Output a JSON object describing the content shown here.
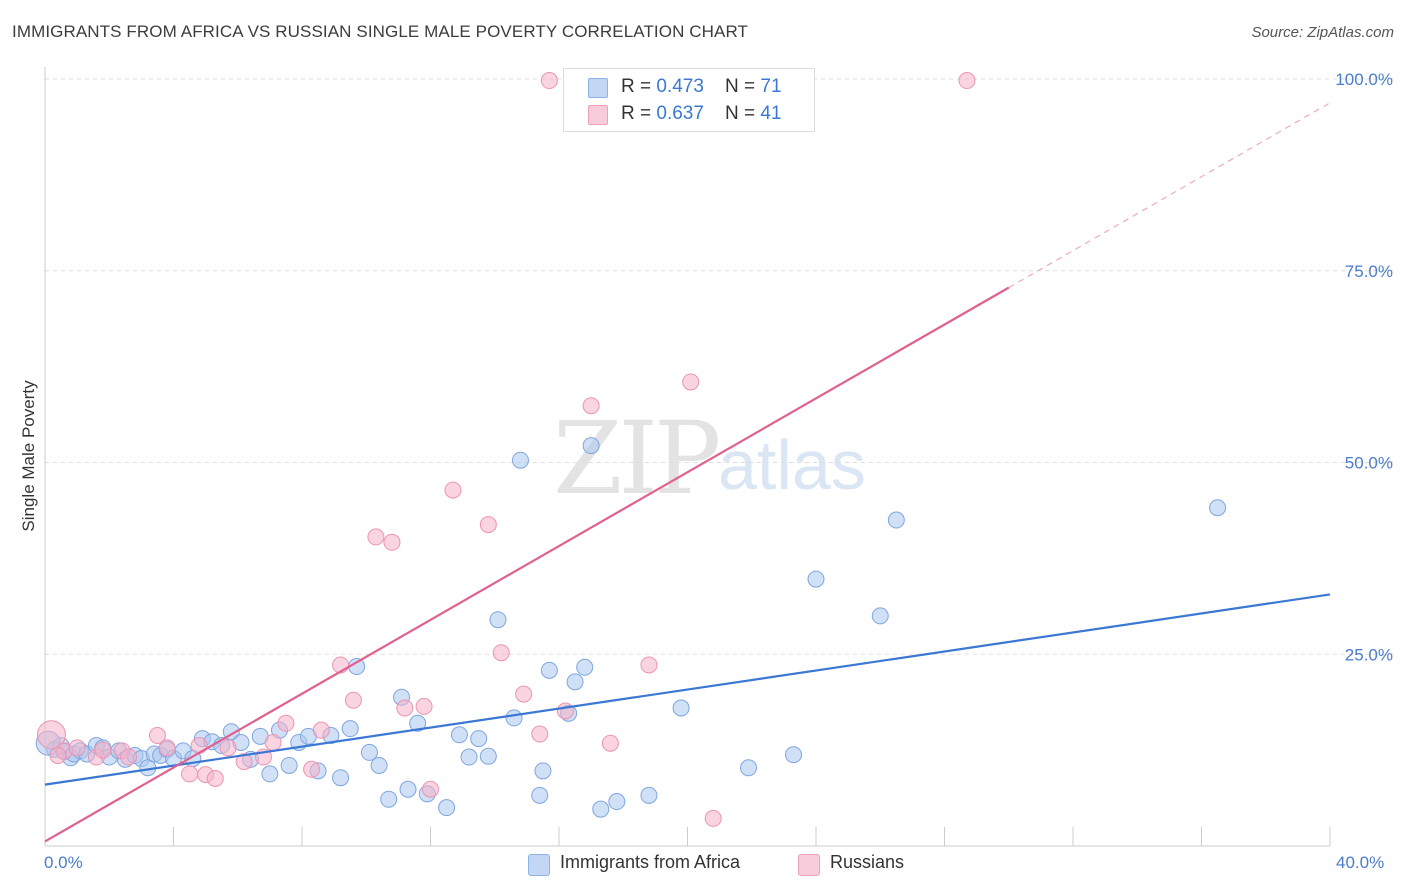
{
  "title": "IMMIGRANTS FROM AFRICA VS RUSSIAN SINGLE MALE POVERTY CORRELATION CHART",
  "source": "Source: ZipAtlas.com",
  "watermark": {
    "zip": "ZIP",
    "atlas": "atlas"
  },
  "colors": {
    "blue": "#3b78d4",
    "blue_fill": "#a9c6ee",
    "pink": "#e0608f",
    "pink_fill": "#f5b3c9",
    "tick": "#4a7cc9",
    "grid": "#dddddd"
  },
  "legend_top": {
    "rows": [
      {
        "r_label": "R = ",
        "r_value": "0.473",
        "n_label": "N = ",
        "n_value": "71"
      },
      {
        "r_label": "R = ",
        "r_value": "0.637",
        "n_label": "N = ",
        "n_value": "41"
      }
    ]
  },
  "legend_bottom": {
    "blue": "Immigrants from Africa",
    "pink": "Russians"
  },
  "x_ticks": {
    "left": "0.0%",
    "right": "40.0%"
  },
  "chart_data": {
    "type": "scatter",
    "title": "IMMIGRANTS FROM AFRICA VS RUSSIAN SINGLE MALE POVERTY CORRELATION CHART",
    "xlabel": "",
    "ylabel": "Single Male Poverty",
    "xlim": [
      0,
      40
    ],
    "ylim": [
      0,
      100
    ],
    "y_ticks": [
      {
        "value": 25,
        "label": "25.0%"
      },
      {
        "value": 50,
        "label": "50.0%"
      },
      {
        "value": 75,
        "label": "75.0%"
      },
      {
        "value": 100,
        "label": "100.0%"
      }
    ],
    "grid": true,
    "legend_position": "top-center",
    "series": [
      {
        "name": "Immigrants from Africa",
        "color": "#3b78d4",
        "trend": {
          "x": [
            0,
            40
          ],
          "y": [
            8.0,
            32.8
          ]
        },
        "points": [
          [
            0.3,
            12.6
          ],
          [
            0.5,
            13.1
          ],
          [
            0.6,
            12.3
          ],
          [
            0.8,
            11.5
          ],
          [
            0.9,
            12.0
          ],
          [
            1.1,
            12.4
          ],
          [
            1.3,
            12.0
          ],
          [
            1.6,
            13.1
          ],
          [
            1.8,
            12.8
          ],
          [
            2.0,
            11.6
          ],
          [
            2.3,
            12.4
          ],
          [
            2.5,
            11.3
          ],
          [
            2.8,
            11.8
          ],
          [
            3.0,
            11.4
          ],
          [
            3.2,
            10.2
          ],
          [
            3.4,
            12.0
          ],
          [
            3.6,
            11.8
          ],
          [
            3.8,
            12.6
          ],
          [
            4.0,
            11.4
          ],
          [
            4.3,
            12.4
          ],
          [
            4.6,
            11.4
          ],
          [
            4.9,
            14.0
          ],
          [
            5.2,
            13.6
          ],
          [
            5.5,
            13.1
          ],
          [
            5.8,
            14.9
          ],
          [
            6.1,
            13.5
          ],
          [
            6.4,
            11.3
          ],
          [
            6.7,
            14.3
          ],
          [
            7.0,
            9.4
          ],
          [
            7.3,
            15.1
          ],
          [
            7.6,
            10.5
          ],
          [
            7.9,
            13.5
          ],
          [
            8.2,
            14.3
          ],
          [
            8.5,
            9.8
          ],
          [
            8.9,
            14.4
          ],
          [
            9.2,
            8.9
          ],
          [
            9.5,
            15.3
          ],
          [
            9.7,
            23.4
          ],
          [
            10.1,
            12.2
          ],
          [
            10.4,
            10.5
          ],
          [
            10.7,
            6.1
          ],
          [
            11.1,
            19.4
          ],
          [
            11.3,
            7.4
          ],
          [
            11.6,
            16.0
          ],
          [
            11.9,
            6.8
          ],
          [
            12.5,
            5.0
          ],
          [
            12.9,
            14.5
          ],
          [
            13.2,
            11.6
          ],
          [
            13.5,
            14.0
          ],
          [
            13.8,
            11.7
          ],
          [
            14.1,
            29.5
          ],
          [
            14.6,
            16.7
          ],
          [
            14.8,
            50.3
          ],
          [
            15.4,
            6.6
          ],
          [
            15.5,
            9.8
          ],
          [
            15.7,
            22.9
          ],
          [
            16.3,
            17.3
          ],
          [
            16.5,
            21.4
          ],
          [
            16.8,
            23.3
          ],
          [
            17.0,
            52.2
          ],
          [
            17.3,
            4.8
          ],
          [
            17.8,
            5.8
          ],
          [
            18.8,
            6.6
          ],
          [
            19.8,
            18.0
          ],
          [
            21.9,
            10.2
          ],
          [
            23.3,
            11.9
          ],
          [
            24.0,
            34.8
          ],
          [
            26.0,
            30.0
          ],
          [
            26.5,
            42.5
          ],
          [
            36.5,
            44.1
          ],
          [
            0.1,
            13.4
          ]
        ]
      },
      {
        "name": "Russians",
        "color": "#e0608f",
        "trend": {
          "x": [
            0,
            30
          ],
          "y": [
            0.6,
            72.8
          ]
        },
        "trend_dashed": {
          "x": [
            30,
            40
          ],
          "y": [
            72.8,
            96.9
          ]
        },
        "points": [
          [
            0.2,
            14.5
          ],
          [
            0.6,
            12.4
          ],
          [
            1.0,
            12.8
          ],
          [
            1.6,
            11.6
          ],
          [
            2.4,
            12.4
          ],
          [
            2.6,
            11.6
          ],
          [
            3.5,
            14.4
          ],
          [
            3.8,
            12.8
          ],
          [
            4.5,
            9.4
          ],
          [
            4.8,
            13.1
          ],
          [
            5.0,
            9.3
          ],
          [
            5.3,
            8.8
          ],
          [
            5.7,
            12.8
          ],
          [
            6.2,
            11.0
          ],
          [
            6.8,
            11.6
          ],
          [
            7.1,
            13.5
          ],
          [
            7.5,
            16.0
          ],
          [
            8.3,
            10.0
          ],
          [
            8.6,
            15.1
          ],
          [
            9.2,
            23.6
          ],
          [
            9.6,
            19.0
          ],
          [
            10.3,
            40.3
          ],
          [
            10.8,
            39.6
          ],
          [
            11.2,
            18.0
          ],
          [
            11.8,
            18.2
          ],
          [
            12.0,
            7.4
          ],
          [
            12.7,
            46.4
          ],
          [
            13.8,
            41.9
          ],
          [
            14.2,
            25.2
          ],
          [
            14.9,
            19.8
          ],
          [
            15.4,
            14.6
          ],
          [
            15.7,
            99.8
          ],
          [
            16.2,
            17.6
          ],
          [
            17.0,
            57.4
          ],
          [
            17.6,
            13.4
          ],
          [
            18.8,
            23.6
          ],
          [
            20.1,
            60.5
          ],
          [
            20.8,
            3.6
          ],
          [
            28.7,
            99.8
          ],
          [
            0.4,
            11.8
          ],
          [
            1.8,
            12.5
          ]
        ]
      }
    ]
  }
}
